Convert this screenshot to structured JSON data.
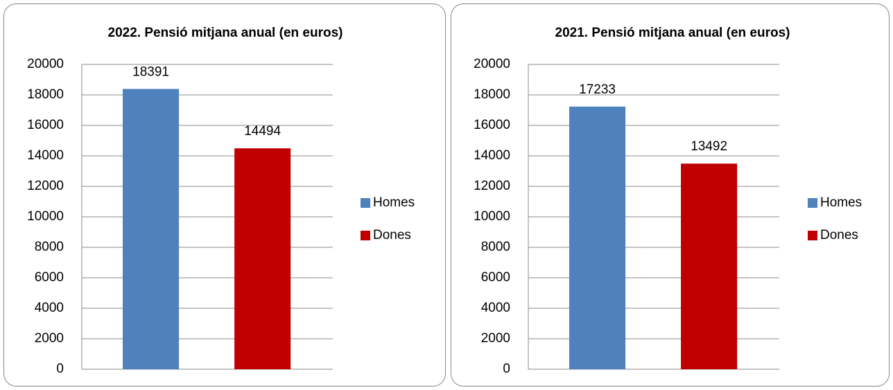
{
  "chart_data": [
    {
      "type": "bar",
      "title": "2022. Pensió mitjana anual (en euros)",
      "categories": [
        null
      ],
      "series": [
        {
          "name": "Homes",
          "color": "#4f81bd",
          "values": [
            18391
          ]
        },
        {
          "name": "Dones",
          "color": "#c00000",
          "values": [
            14494
          ]
        }
      ],
      "ylim": [
        0,
        20000
      ],
      "yticks": [
        0,
        2000,
        4000,
        6000,
        8000,
        10000,
        12000,
        14000,
        16000,
        18000,
        20000
      ],
      "grid": true,
      "legend": "right"
    },
    {
      "type": "bar",
      "title": "2021. Pensió mitjana anual (en euros)",
      "categories": [
        null
      ],
      "series": [
        {
          "name": "Homes",
          "color": "#4f81bd",
          "values": [
            17233
          ]
        },
        {
          "name": "Dones",
          "color": "#c00000",
          "values": [
            13492
          ]
        }
      ],
      "ylim": [
        0,
        20000
      ],
      "yticks": [
        0,
        2000,
        4000,
        6000,
        8000,
        10000,
        12000,
        14000,
        16000,
        18000,
        20000
      ],
      "grid": true,
      "legend": "right"
    }
  ]
}
